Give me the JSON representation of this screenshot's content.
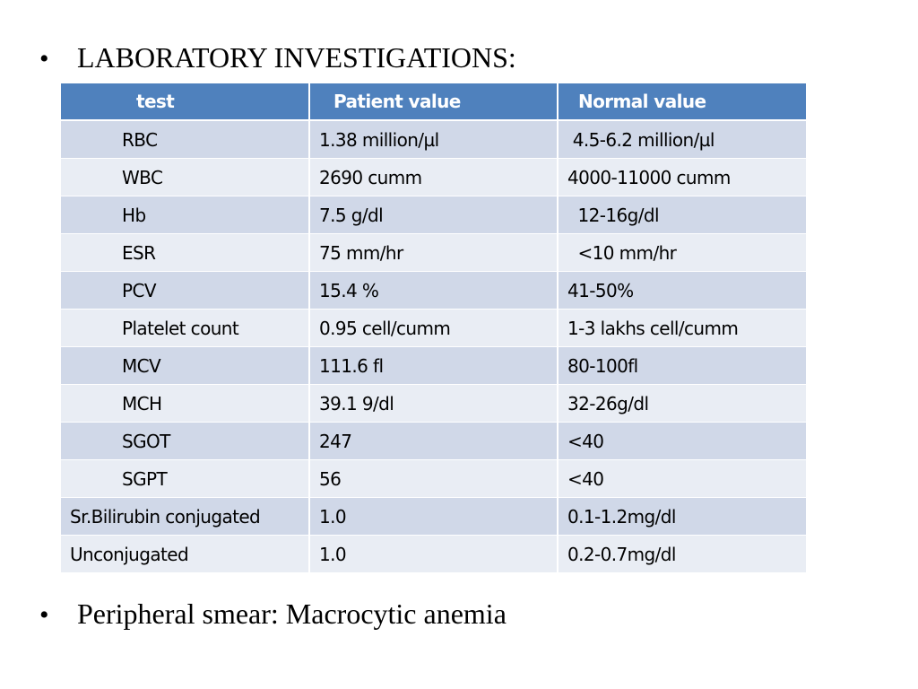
{
  "heading": {
    "bullet": "•",
    "text": "LABORATORY INVESTIGATIONS:"
  },
  "table": {
    "headers": [
      "test",
      "Patient value",
      "Normal value"
    ],
    "rows": [
      {
        "test": "RBC",
        "patient": "1.38 million/µl",
        "normal": " 4.5-6.2 million/µl"
      },
      {
        "test": "WBC",
        "patient": "2690 cumm",
        "normal": "4000-11000 cumm"
      },
      {
        "test": "Hb",
        "patient": "7.5 g/dl",
        "normal": "  12-16g/dl"
      },
      {
        "test": "ESR",
        "patient": "75 mm/hr",
        "normal": "  <10 mm/hr"
      },
      {
        "test": "PCV",
        "patient": "15.4 %",
        "normal": "41-50%"
      },
      {
        "test": "Platelet count",
        "patient": "0.95 cell/cumm",
        "normal": "1-3 lakhs cell/cumm"
      },
      {
        "test": "MCV",
        "patient": "111.6 fl",
        "normal": "80-100fl"
      },
      {
        "test": "MCH",
        "patient": "39.1 9/dl",
        "normal": "32-26g/dl"
      },
      {
        "test": "SGOT",
        "patient": "247",
        "normal": "<40"
      },
      {
        "test": "SGPT",
        "patient": "56",
        "normal": "<40"
      },
      {
        "test": "Sr.Bilirubin conjugated",
        "patient": "1.0",
        "normal": "0.1-1.2mg/dl"
      },
      {
        "test": "Unconjugated",
        "patient": "1.0",
        "normal": "0.2-0.7mg/dl"
      }
    ]
  },
  "footer_bullet": {
    "bullet": "•",
    "text": "Peripheral smear: Macrocytic anemia"
  },
  "colors": {
    "header_bg": "#4f81bd",
    "row_odd_bg": "#d0d8e8",
    "row_even_bg": "#e9edf4"
  }
}
